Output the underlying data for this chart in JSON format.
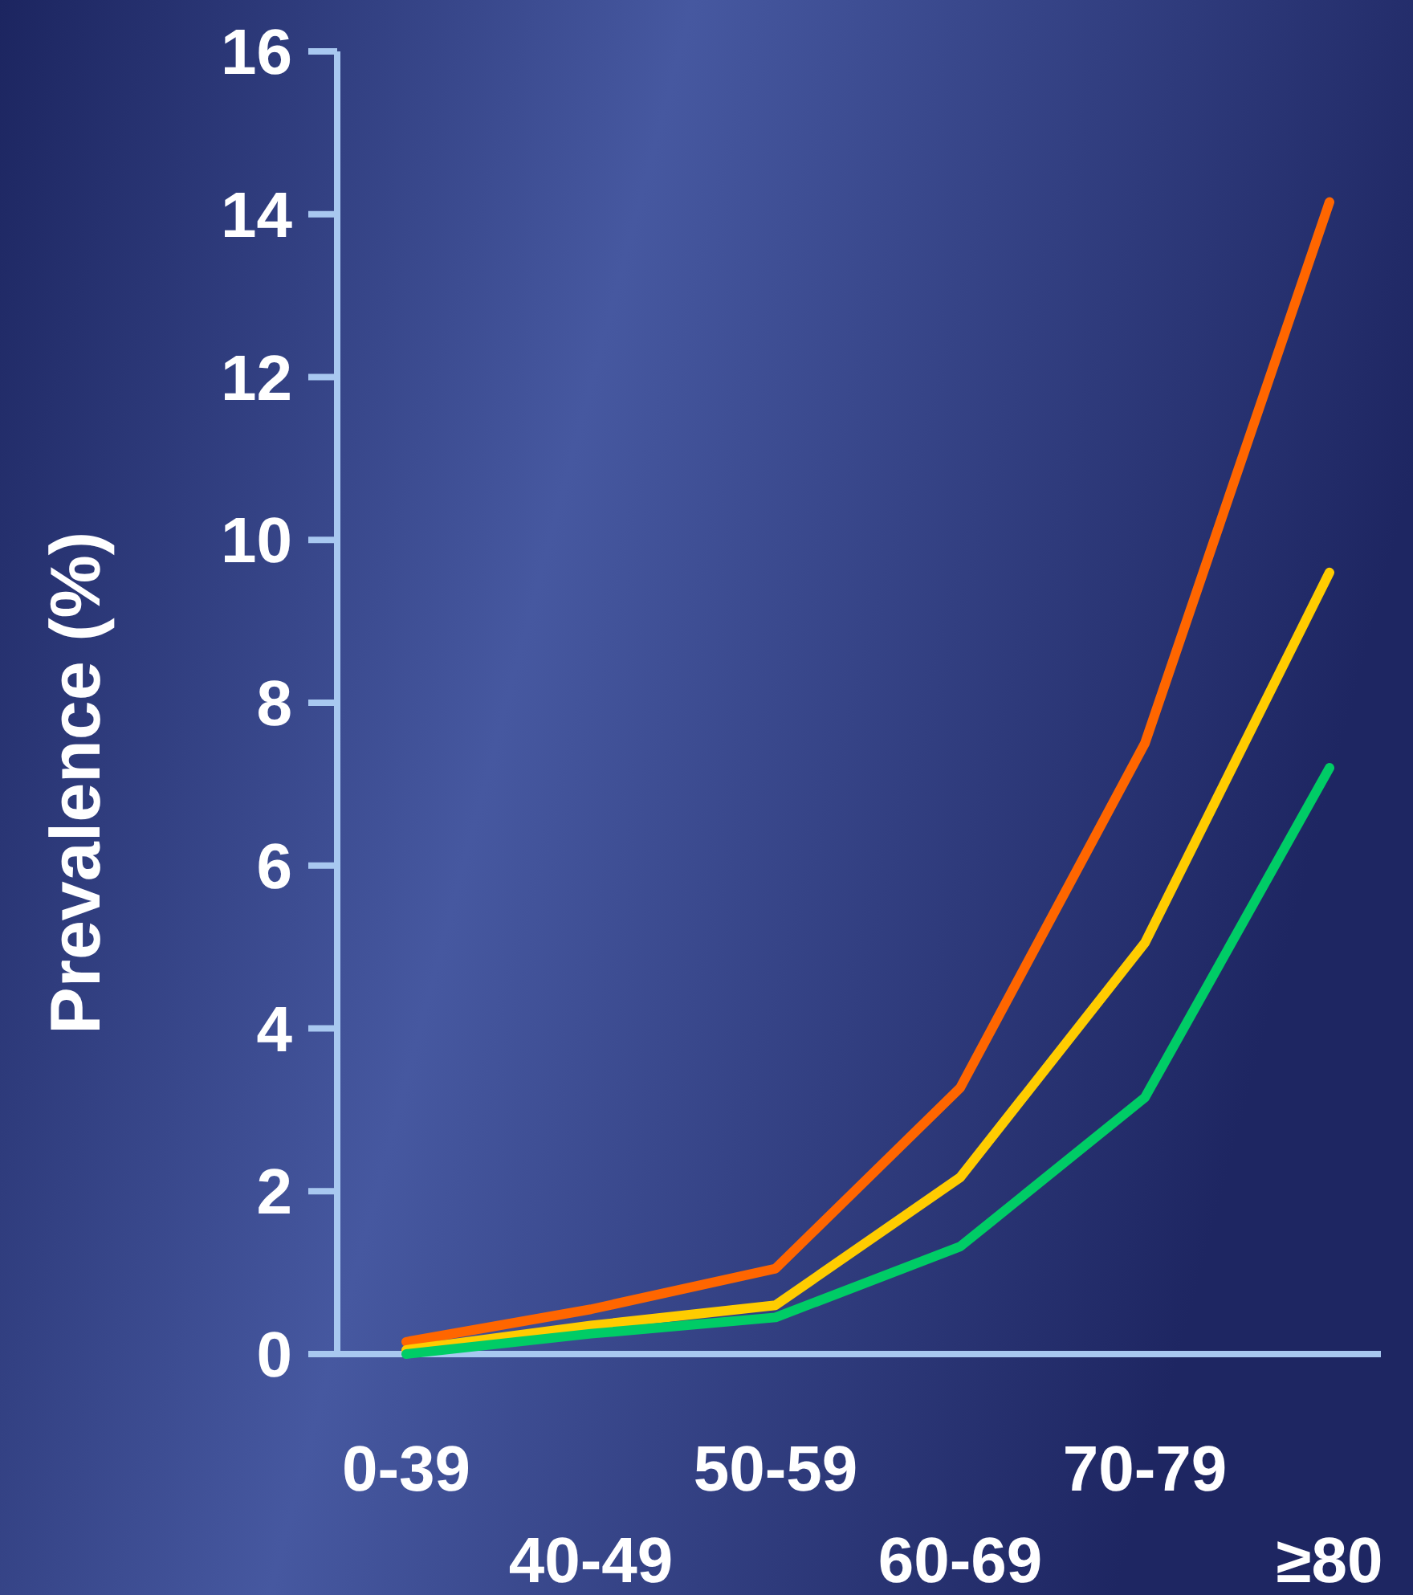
{
  "chart_data": {
    "type": "line",
    "ylabel": "Prevalence (%)",
    "categories": [
      "0-39",
      "40-49",
      "50-59",
      "60-69",
      "70-79",
      "≥80"
    ],
    "series": [
      {
        "color": "#ff6600",
        "values": [
          0.15,
          0.55,
          1.05,
          3.27,
          7.5,
          14.15
        ]
      },
      {
        "color": "#ffcc00",
        "values": [
          0.05,
          0.35,
          0.6,
          2.17,
          5.05,
          9.6
        ]
      },
      {
        "color": "#00cc66",
        "values": [
          0,
          0.25,
          0.45,
          1.32,
          3.15,
          7.2
        ]
      }
    ],
    "ylim": [
      0,
      16
    ],
    "yticks": [
      0,
      2,
      4,
      6,
      8,
      10,
      12,
      14,
      16
    ],
    "grid": false,
    "marker": "none",
    "line_style": "solid"
  }
}
